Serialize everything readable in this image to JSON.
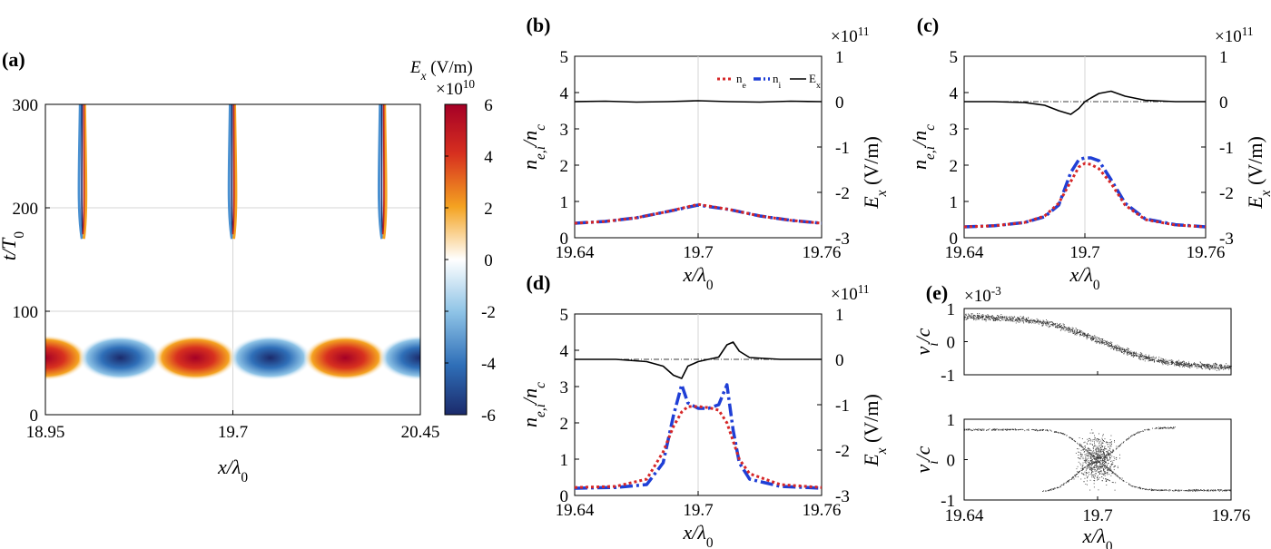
{
  "figure": {
    "colorbar": {
      "label_sym": "E",
      "label_sub": "x",
      "label_unit": " (V/m)",
      "exponent_base": "×10",
      "exponent_pow": "10",
      "min": -6,
      "max": 6,
      "ticks": [
        "6",
        "4",
        "2",
        "0",
        "-2",
        "-4",
        "-6"
      ]
    },
    "legend": {
      "ne": "n",
      "ne_sub": "e",
      "ni": "n",
      "ni_sub": "i",
      "ex": "E",
      "ex_sub": "x"
    },
    "colors": {
      "ne": "#d62728",
      "ni": "#1f3fd6",
      "ex": "#000000",
      "neg": "#1d3a8c",
      "pos": "#b2182b"
    }
  },
  "chart_data": [
    {
      "panel": "(a)",
      "type": "heatmap",
      "xlabel": "x/λ0",
      "ylabel": "t/T0",
      "x_ticks": [
        "18.95",
        "19.7",
        "20.45"
      ],
      "y_ticks": [
        "0",
        "100",
        "200",
        "300"
      ],
      "xlim": [
        18.95,
        20.45
      ],
      "ylim": [
        0,
        300
      ],
      "laser_blobs": [
        {
          "x": 18.95,
          "t": 55,
          "sign": 1
        },
        {
          "x": 19.25,
          "t": 55,
          "sign": -1
        },
        {
          "x": 19.55,
          "t": 55,
          "sign": 1
        },
        {
          "x": 19.85,
          "t": 55,
          "sign": -1
        },
        {
          "x": 20.15,
          "t": 55,
          "sign": 1
        },
        {
          "x": 20.45,
          "t": 55,
          "sign": -1
        }
      ],
      "filaments": [
        {
          "x": 19.1,
          "t_start": 170,
          "t_end": 300
        },
        {
          "x": 19.7,
          "t_start": 170,
          "t_end": 300
        },
        {
          "x": 20.3,
          "t_start": 170,
          "t_end": 300
        }
      ]
    },
    {
      "panel": "(b)",
      "type": "line",
      "xlabel": "x/λ0",
      "ylabel_left": "ne,i/nc",
      "ylabel_right": "Ex (V/m)",
      "x_ticks": [
        "19.64",
        "19.7",
        "19.76"
      ],
      "y_ticks": [
        "0",
        "1",
        "2",
        "3",
        "4",
        "5"
      ],
      "y2_ticks": [
        "1",
        "0",
        "-1",
        "-2",
        "-3"
      ],
      "y2_exponent": "11",
      "xlim": [
        19.64,
        19.76
      ],
      "ylim": [
        0,
        5
      ],
      "y2lim": [
        -3,
        1
      ],
      "x": [
        19.64,
        19.655,
        19.67,
        19.685,
        19.7,
        19.715,
        19.73,
        19.745,
        19.76
      ],
      "series": [
        {
          "name": "ne",
          "axis": "left",
          "values": [
            0.4,
            0.45,
            0.55,
            0.72,
            0.92,
            0.78,
            0.6,
            0.48,
            0.4
          ]
        },
        {
          "name": "ni",
          "axis": "left",
          "values": [
            0.4,
            0.45,
            0.55,
            0.72,
            0.9,
            0.78,
            0.6,
            0.48,
            0.4
          ]
        },
        {
          "name": "Ex",
          "axis": "right",
          "values": [
            0.0,
            0.01,
            -0.01,
            0.0,
            0.02,
            0.0,
            -0.01,
            0.01,
            0.0
          ]
        }
      ]
    },
    {
      "panel": "(c)",
      "type": "line",
      "xlabel": "x/λ0",
      "ylabel_left": "ne,i/nc",
      "ylabel_right": "Ex (V/m)",
      "x_ticks": [
        "19.64",
        "19.7",
        "19.76"
      ],
      "y_ticks": [
        "0",
        "1",
        "2",
        "3",
        "4",
        "5"
      ],
      "y2_ticks": [
        "1",
        "0",
        "-1",
        "-2",
        "-3"
      ],
      "y2_exponent": "11",
      "xlim": [
        19.64,
        19.76
      ],
      "ylim": [
        0,
        5
      ],
      "y2lim": [
        -3,
        1
      ],
      "x": [
        19.64,
        19.655,
        19.67,
        19.68,
        19.687,
        19.693,
        19.697,
        19.7,
        19.703,
        19.707,
        19.713,
        19.72,
        19.73,
        19.745,
        19.76
      ],
      "series": [
        {
          "name": "ne",
          "axis": "left",
          "values": [
            0.3,
            0.33,
            0.42,
            0.6,
            0.95,
            1.55,
            1.95,
            2.05,
            2.02,
            1.9,
            1.5,
            0.9,
            0.5,
            0.35,
            0.3
          ]
        },
        {
          "name": "ni",
          "axis": "left",
          "values": [
            0.3,
            0.33,
            0.42,
            0.58,
            0.9,
            1.8,
            2.15,
            2.2,
            2.2,
            2.12,
            1.6,
            0.95,
            0.52,
            0.36,
            0.3
          ]
        },
        {
          "name": "Ex",
          "axis": "right",
          "values": [
            0.0,
            0.0,
            -0.02,
            -0.08,
            -0.2,
            -0.28,
            -0.15,
            0.0,
            0.08,
            0.18,
            0.23,
            0.12,
            0.03,
            0.0,
            0.0
          ]
        }
      ]
    },
    {
      "panel": "(d)",
      "type": "line",
      "xlabel": "x/λ0",
      "ylabel_left": "ne,i/nc",
      "ylabel_right": "Ex (V/m)",
      "x_ticks": [
        "19.64",
        "19.7",
        "19.76"
      ],
      "y_ticks": [
        "0",
        "1",
        "2",
        "3",
        "4",
        "5"
      ],
      "y2_ticks": [
        "1",
        "0",
        "-1",
        "-2",
        "-3"
      ],
      "y2_exponent": "11",
      "xlim": [
        19.64,
        19.76
      ],
      "ylim": [
        0,
        5
      ],
      "y2lim": [
        -3,
        1
      ],
      "x": [
        19.64,
        19.66,
        19.675,
        19.683,
        19.688,
        19.692,
        19.695,
        19.7,
        19.705,
        19.71,
        19.714,
        19.717,
        19.72,
        19.725,
        19.74,
        19.76
      ],
      "series": [
        {
          "name": "ne",
          "axis": "left",
          "values": [
            0.22,
            0.25,
            0.45,
            1.2,
            1.9,
            2.3,
            2.45,
            2.45,
            2.42,
            2.35,
            2.0,
            1.5,
            1.0,
            0.6,
            0.3,
            0.22
          ]
        },
        {
          "name": "ni",
          "axis": "left",
          "values": [
            0.2,
            0.22,
            0.3,
            0.9,
            2.2,
            3.05,
            2.55,
            2.4,
            2.4,
            2.5,
            3.05,
            1.8,
            0.9,
            0.45,
            0.25,
            0.2
          ]
        },
        {
          "name": "Ex",
          "axis": "right",
          "values": [
            0.0,
            0.0,
            -0.05,
            -0.15,
            -0.35,
            -0.42,
            -0.15,
            -0.05,
            0.0,
            0.05,
            0.32,
            0.38,
            0.18,
            0.04,
            0.0,
            0.0
          ]
        }
      ]
    },
    {
      "panel": "(e)",
      "type": "scatter",
      "xlabel": "x/λ0",
      "ylabel": "vi/c",
      "y_exponent_base": "×10",
      "y_exponent_pow": "-3",
      "x_ticks": [
        "19.64",
        "19.7",
        "19.76"
      ],
      "y_ticks": [
        "1",
        "0",
        "-1"
      ],
      "xlim": [
        19.64,
        19.76
      ],
      "ylim": [
        -1,
        1
      ],
      "subplots": [
        {
          "shape": "decreasing-band",
          "x": [
            19.64,
            19.67,
            19.7,
            19.73,
            19.76
          ],
          "values": [
            0.8,
            0.6,
            0.05,
            -0.55,
            -0.75
          ]
        },
        {
          "shape": "hourglass",
          "x": [
            19.64,
            19.67,
            19.7,
            19.73,
            19.76
          ],
          "values": [
            0.75,
            0.7,
            0.0,
            -0.7,
            -0.75
          ]
        }
      ]
    }
  ]
}
